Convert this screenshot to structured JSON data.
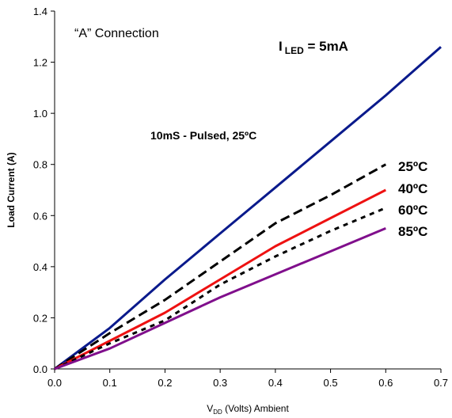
{
  "chart_data": {
    "type": "line",
    "xlabel": {
      "main": "V",
      "sub": "DD",
      "rest": " (Volts) Ambient"
    },
    "ylabel": "Load Current (A)",
    "xlim": [
      0,
      0.7
    ],
    "ylim": [
      0,
      1.4
    ],
    "x_ticks": [
      "0.0",
      "0.1",
      "0.2",
      "0.3",
      "0.4",
      "0.5",
      "0.6",
      "0.7"
    ],
    "y_ticks": [
      "0.0",
      "0.2",
      "0.4",
      "0.6",
      "0.8",
      "1.0",
      "1.2",
      "1.4"
    ],
    "grid": false,
    "annotations": {
      "connection": "“A” Connection",
      "iled_main": "I",
      "iled_sub": "LED",
      "iled_rest": " = 5mA",
      "pulsed": "10mS - Pulsed, 25ºC"
    },
    "series": [
      {
        "color": "#0a1a8c",
        "style": "solid",
        "x": [
          0,
          0.1,
          0.2,
          0.3,
          0.4,
          0.5,
          0.6,
          0.7
        ],
        "y": [
          0,
          0.16,
          0.35,
          0.53,
          0.71,
          0.89,
          1.07,
          1.26
        ]
      },
      {
        "name": "25ºC",
        "color": "#000000",
        "style": "dashed",
        "x": [
          0,
          0.1,
          0.2,
          0.3,
          0.4,
          0.5,
          0.6
        ],
        "y": [
          0,
          0.14,
          0.27,
          0.42,
          0.57,
          0.68,
          0.8
        ]
      },
      {
        "name": "40ºC",
        "color": "#ee1111",
        "style": "solid",
        "x": [
          0,
          0.1,
          0.2,
          0.3,
          0.4,
          0.5,
          0.6
        ],
        "y": [
          0,
          0.11,
          0.22,
          0.35,
          0.48,
          0.59,
          0.7
        ]
      },
      {
        "name": "60ºC",
        "color": "#000000",
        "style": "dotted",
        "x": [
          0,
          0.1,
          0.2,
          0.3,
          0.4,
          0.5,
          0.6
        ],
        "y": [
          0,
          0.1,
          0.19,
          0.33,
          0.44,
          0.54,
          0.63
        ]
      },
      {
        "name": "85ºC",
        "color": "#800f8c",
        "style": "solid",
        "x": [
          0,
          0.1,
          0.2,
          0.3,
          0.4,
          0.5,
          0.6
        ],
        "y": [
          0,
          0.08,
          0.18,
          0.28,
          0.37,
          0.46,
          0.55
        ]
      }
    ]
  }
}
